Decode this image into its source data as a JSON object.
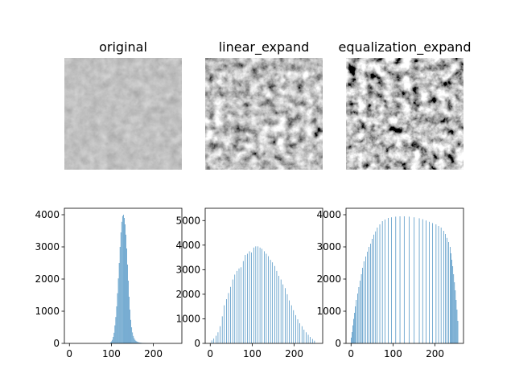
{
  "colors": {
    "bar": "#1f77b4",
    "axis": "#000000",
    "background": "#ffffff"
  },
  "images": [
    {
      "title": "original",
      "tone": "low-contrast"
    },
    {
      "title": "linear_expand",
      "tone": "stretched"
    },
    {
      "title": "equalization_expand",
      "tone": "equalized"
    }
  ],
  "chart_data": [
    {
      "type": "bar",
      "style": "histogram",
      "xlim": [
        -12,
        268
      ],
      "ylim": [
        0,
        4200
      ],
      "xticks": [
        0,
        100,
        200
      ],
      "yticks": [
        0,
        1000,
        2000,
        3000,
        4000
      ],
      "bin_width": 1,
      "x": [
        98,
        100,
        102,
        104,
        106,
        108,
        110,
        112,
        114,
        116,
        118,
        120,
        122,
        124,
        126,
        128,
        130,
        132,
        134,
        136,
        138,
        140,
        142,
        144,
        146,
        148,
        150,
        152,
        154,
        156,
        158,
        160,
        162,
        164,
        166,
        168,
        170,
        172,
        174,
        176,
        178,
        180,
        182,
        184,
        186,
        188,
        190
      ],
      "values": [
        30,
        60,
        110,
        200,
        330,
        560,
        820,
        1150,
        1560,
        2020,
        2500,
        3000,
        3450,
        3780,
        3960,
        4000,
        3900,
        3700,
        3380,
        2950,
        2450,
        1950,
        1450,
        1050,
        730,
        500,
        340,
        230,
        160,
        110,
        80,
        60,
        45,
        35,
        28,
        22,
        18,
        14,
        11,
        9,
        7,
        5,
        4,
        3,
        2,
        1,
        1
      ]
    },
    {
      "type": "bar",
      "style": "histogram",
      "xlim": [
        -12,
        268
      ],
      "ylim": [
        0,
        5500
      ],
      "xticks": [
        0,
        100,
        200
      ],
      "yticks": [
        0,
        1000,
        2000,
        3000,
        4000,
        5000
      ],
      "bin_width": 1,
      "x": [
        3,
        8,
        13,
        18,
        23,
        28,
        33,
        38,
        43,
        48,
        53,
        58,
        63,
        68,
        73,
        78,
        83,
        88,
        93,
        98,
        103,
        108,
        113,
        118,
        123,
        128,
        133,
        138,
        143,
        148,
        153,
        158,
        163,
        168,
        173,
        178,
        183,
        188,
        193,
        198,
        203,
        208,
        213,
        218,
        223,
        228,
        233,
        238,
        243,
        248
      ],
      "values": [
        120,
        200,
        310,
        450,
        700,
        1100,
        1550,
        1800,
        2050,
        2300,
        2600,
        2800,
        2950,
        3050,
        3100,
        3350,
        3600,
        3650,
        3750,
        3700,
        3900,
        3950,
        3950,
        3900,
        3850,
        3750,
        3650,
        3550,
        3400,
        3300,
        3150,
        2950,
        2750,
        2600,
        2400,
        2250,
        2000,
        1750,
        1550,
        1350,
        1150,
        980,
        820,
        700,
        560,
        450,
        350,
        260,
        180,
        110
      ]
    },
    {
      "type": "bar",
      "style": "histogram",
      "xlim": [
        -12,
        268
      ],
      "ylim": [
        0,
        4200
      ],
      "xticks": [
        0,
        100,
        200
      ],
      "yticks": [
        0,
        1000,
        2000,
        3000,
        4000
      ],
      "bin_width": 1,
      "x": [
        0,
        2,
        4,
        6,
        8,
        10,
        12,
        15,
        18,
        21,
        24,
        27,
        30,
        34,
        38,
        42,
        46,
        50,
        54,
        58,
        62,
        68,
        74,
        80,
        88,
        96,
        106,
        116,
        126,
        138,
        150,
        162,
        170,
        178,
        186,
        194,
        202,
        208,
        214,
        220,
        224,
        228,
        232,
        236,
        238,
        240,
        242,
        244,
        246,
        248,
        250,
        252,
        254
      ],
      "values": [
        180,
        350,
        560,
        760,
        950,
        1150,
        1350,
        1550,
        1750,
        1950,
        2150,
        2350,
        2550,
        2700,
        2850,
        3000,
        3100,
        3250,
        3380,
        3480,
        3600,
        3700,
        3800,
        3850,
        3900,
        3920,
        3940,
        3950,
        3950,
        3940,
        3920,
        3890,
        3860,
        3820,
        3780,
        3740,
        3700,
        3650,
        3600,
        3500,
        3400,
        3280,
        3150,
        3000,
        2800,
        2600,
        2400,
        2150,
        1900,
        1650,
        1350,
        1050,
        700
      ]
    }
  ]
}
